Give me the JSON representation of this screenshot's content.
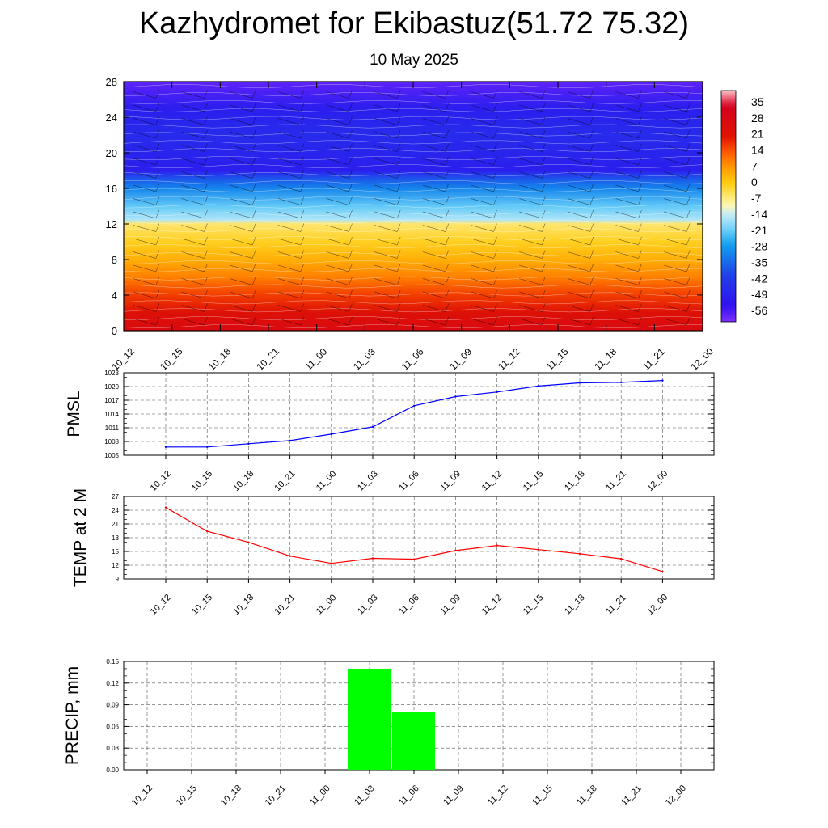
{
  "header": {
    "title": "Kazhydromet for Ekibastuz(51.72 75.32)",
    "subtitle": "10 May 2025"
  },
  "chart_data": [
    {
      "type": "heatmap",
      "title": "",
      "xlabel": "",
      "ylabel": "",
      "categories": [
        "10_12",
        "10_15",
        "10_18",
        "10_21",
        "11_00",
        "11_03",
        "11_06",
        "11_09",
        "11_12",
        "11_15",
        "11_18",
        "11_21",
        "12_00"
      ],
      "yticks": [
        0,
        4,
        8,
        12,
        16,
        20,
        24,
        28
      ],
      "ylim": [
        0,
        28
      ],
      "colorbar": {
        "labels": [
          35,
          28,
          21,
          14,
          7,
          0,
          -7,
          -14,
          -21,
          -28,
          -35,
          -42,
          -49,
          -56
        ],
        "range": [
          -63,
          42
        ],
        "stops": [
          {
            "value": 42,
            "color": "#ffc0c8"
          },
          {
            "value": 35,
            "color": "#d40020"
          },
          {
            "value": 21,
            "color": "#e01400"
          },
          {
            "value": 14,
            "color": "#ff5a00"
          },
          {
            "value": 7,
            "color": "#ff9a00"
          },
          {
            "value": 0,
            "color": "#ffcc10"
          },
          {
            "value": -10,
            "color": "#fff8b0"
          },
          {
            "value": -14,
            "color": "#c8eef8"
          },
          {
            "value": -21,
            "color": "#70d0f8"
          },
          {
            "value": -28,
            "color": "#10a0ee"
          },
          {
            "value": -42,
            "color": "#2040e8"
          },
          {
            "value": -56,
            "color": "#3010f0"
          },
          {
            "value": -63,
            "color": "#8030ff"
          }
        ]
      },
      "temperature_profile": [
        {
          "level": 0,
          "value": 28
        },
        {
          "level": 2,
          "value": 24
        },
        {
          "level": 4,
          "value": 17
        },
        {
          "level": 6,
          "value": 10
        },
        {
          "level": 8,
          "value": 4
        },
        {
          "level": 10,
          "value": -1
        },
        {
          "level": 12,
          "value": -6
        },
        {
          "level": 12.5,
          "value": -16
        },
        {
          "level": 14,
          "value": -22
        },
        {
          "level": 16,
          "value": -32
        },
        {
          "level": 17,
          "value": -38
        },
        {
          "level": 18,
          "value": -52
        },
        {
          "level": 22,
          "value": -48
        },
        {
          "level": 25,
          "value": -52
        },
        {
          "level": 28,
          "value": -60
        }
      ]
    },
    {
      "type": "line",
      "title": "",
      "ylabel": "PMSL",
      "xlabel": "",
      "categories": [
        "10_12",
        "10_15",
        "10_18",
        "10_21",
        "11_00",
        "11_03",
        "11_06",
        "11_09",
        "11_12",
        "11_15",
        "11_18",
        "11_21",
        "12_00"
      ],
      "series": [
        {
          "values": [
            1006.8,
            1006.8,
            1007.5,
            1008.2,
            1009.6,
            1011.2,
            1015.8,
            1017.8,
            1018.8,
            1020.1,
            1020.8,
            1020.9,
            1021.3
          ]
        }
      ],
      "yticks": [
        1005,
        1008,
        1011,
        1014,
        1017,
        1020,
        1023
      ],
      "ylim": [
        1005,
        1023
      ],
      "color": "#0000ff"
    },
    {
      "type": "line",
      "title": "",
      "ylabel": "TEMP at 2 M",
      "xlabel": "",
      "categories": [
        "10_12",
        "10_15",
        "10_18",
        "10_21",
        "11_00",
        "11_03",
        "11_06",
        "11_09",
        "11_12",
        "11_15",
        "11_18",
        "11_21",
        "12_00"
      ],
      "series": [
        {
          "values": [
            24.6,
            19.4,
            17.0,
            14.0,
            12.4,
            13.5,
            13.3,
            15.2,
            16.3,
            15.4,
            14.5,
            13.4,
            10.6
          ]
        }
      ],
      "yticks": [
        9,
        12,
        15,
        18,
        21,
        24,
        27
      ],
      "ylim": [
        9,
        27
      ],
      "color": "#ff0000"
    },
    {
      "type": "bar",
      "title": "",
      "ylabel": "PRECIP, mm",
      "xlabel": "",
      "categories": [
        "10_12",
        "10_15",
        "10_18",
        "10_21",
        "11_00",
        "11_03",
        "11_06",
        "11_09",
        "11_12",
        "11_15",
        "11_18",
        "11_21",
        "12_00"
      ],
      "series": [
        {
          "values": [
            0,
            0,
            0,
            0,
            0,
            0.14,
            0.08,
            0,
            0,
            0,
            0,
            0,
            0
          ]
        }
      ],
      "yticks": [
        "0.00",
        "0.03",
        "0.06",
        "0.09",
        "0.12",
        "0.15"
      ],
      "ylim": [
        0,
        0.15
      ],
      "color": "#00ff00"
    }
  ]
}
